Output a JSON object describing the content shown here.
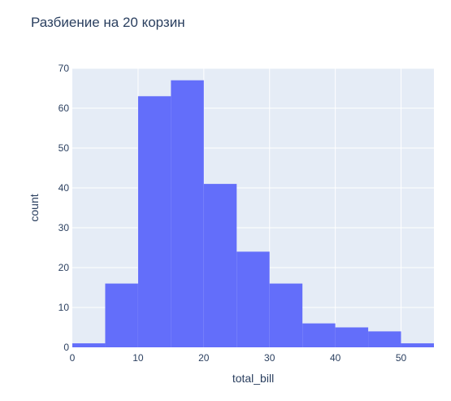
{
  "chart_data": {
    "type": "bar",
    "title": "Разбиение на 20 корзин",
    "xlabel": "total_bill",
    "ylabel": "count",
    "bin_edges": [
      0,
      5,
      10,
      15,
      20,
      25,
      30,
      35,
      40,
      45,
      50,
      55
    ],
    "values": [
      1,
      16,
      63,
      67,
      41,
      24,
      16,
      6,
      5,
      4,
      1
    ],
    "xlim": [
      0,
      55
    ],
    "ylim": [
      0,
      70
    ],
    "x_ticks": [
      "0",
      "10",
      "20",
      "30",
      "40",
      "50"
    ],
    "y_ticks": [
      "0",
      "10",
      "20",
      "30",
      "40",
      "50",
      "60",
      "70"
    ],
    "grid": true,
    "bar_color": "#636efa",
    "plot_bg_color": "#e5ecf6",
    "text_color": "#2a3f5f"
  }
}
